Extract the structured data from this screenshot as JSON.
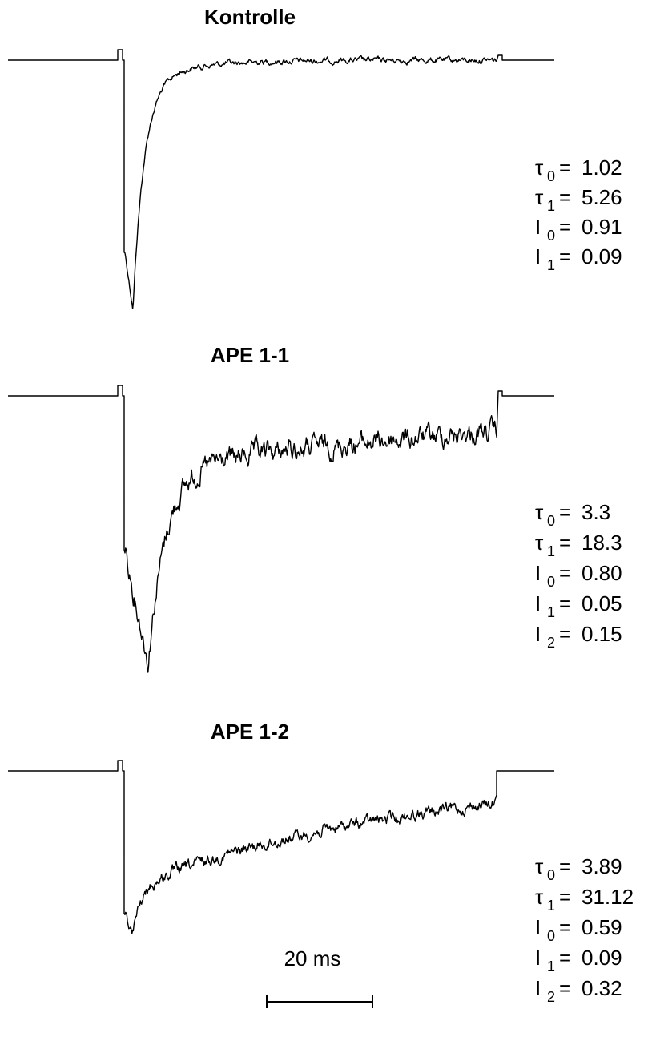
{
  "panels": [
    {
      "title": "Kontrolle",
      "params": [
        {
          "symbol": "τ",
          "sub": "0",
          "eq": "=",
          "value": "1.02"
        },
        {
          "symbol": "τ",
          "sub": "1",
          "eq": "=",
          "value": "5.26"
        },
        {
          "symbol": "I",
          "sub": "0",
          "eq": "=",
          "value": "0.91"
        },
        {
          "symbol": "I",
          "sub": "1",
          "eq": "=",
          "value": "0.09"
        }
      ]
    },
    {
      "title": "APE 1-1",
      "params": [
        {
          "symbol": "τ",
          "sub": "0",
          "eq": "=",
          "value": "3.3"
        },
        {
          "symbol": "τ",
          "sub": "1",
          "eq": "=",
          "value": "18.3"
        },
        {
          "symbol": "I",
          "sub": "0",
          "eq": "=",
          "value": "0.80"
        },
        {
          "symbol": "I",
          "sub": "1",
          "eq": "=",
          "value": "0.05"
        },
        {
          "symbol": "I",
          "sub": "2",
          "eq": "=",
          "value": "0.15"
        }
      ]
    },
    {
      "title": "APE 1-2",
      "params": [
        {
          "symbol": "τ",
          "sub": "0",
          "eq": "=",
          "value": "3.89"
        },
        {
          "symbol": "τ",
          "sub": "1",
          "eq": "=",
          "value": "31.12"
        },
        {
          "symbol": "I",
          "sub": "0",
          "eq": "=",
          "value": "0.59"
        },
        {
          "symbol": "I",
          "sub": "1",
          "eq": "=",
          "value": "0.09"
        },
        {
          "symbol": "I",
          "sub": "2",
          "eq": "=",
          "value": "0.32"
        }
      ]
    }
  ],
  "scale_bar": {
    "label": "20 ms"
  }
}
